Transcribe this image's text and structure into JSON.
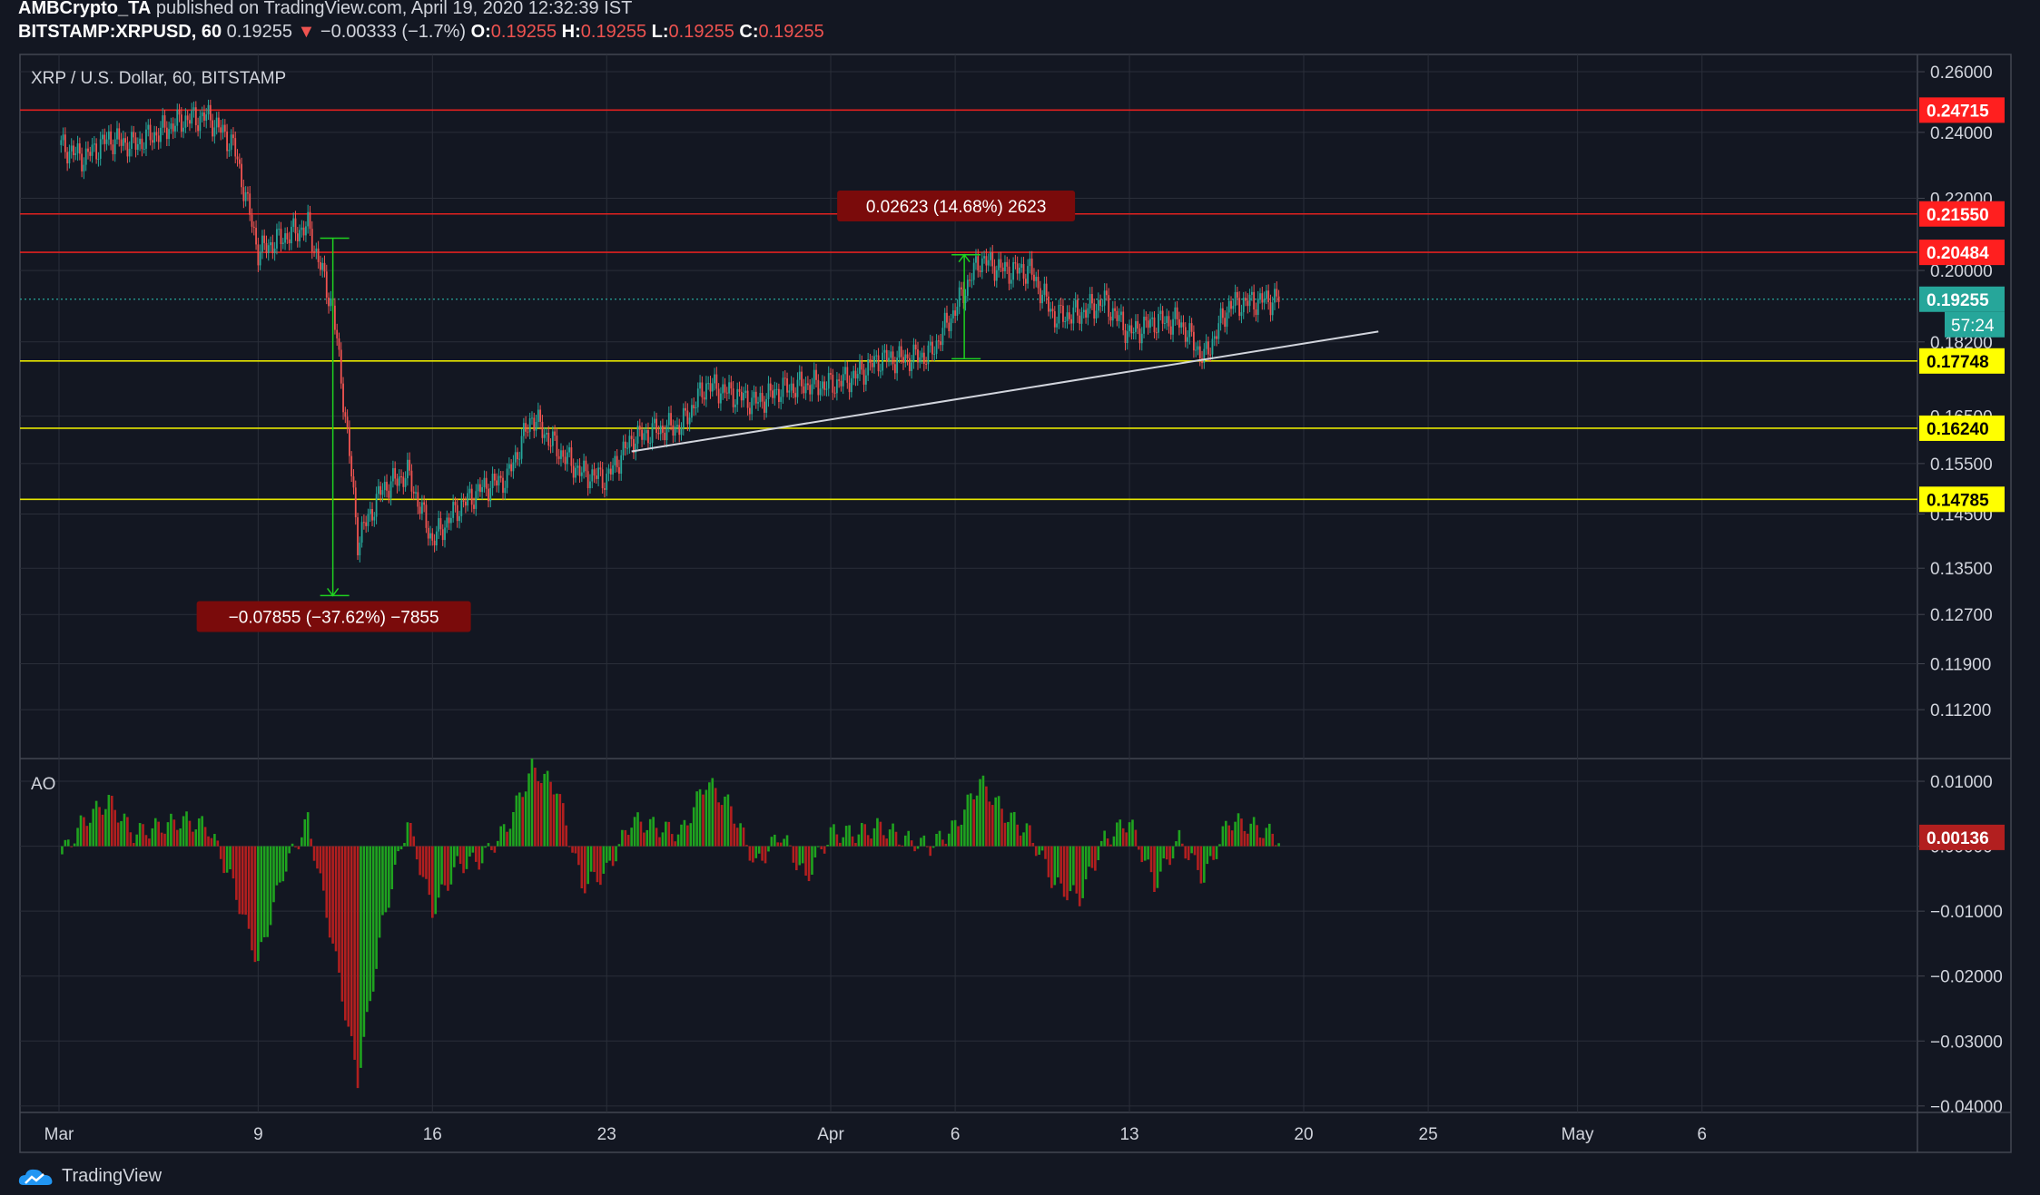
{
  "header": {
    "author": "AMBCrypto_TA",
    "published": "published on TradingView.com, April 19, 2020 12:32:39 IST",
    "symbol": "BITSTAMP:XRPUSD, 60",
    "price": "0.19255",
    "arrow": "▼",
    "change": "−0.00333 (−1.7%)",
    "o_label": "O:",
    "o_val": "0.19255",
    "h_label": "H:",
    "h_val": "0.19255",
    "l_label": "L:",
    "l_val": "0.19255",
    "c_label": "C:",
    "c_val": "0.19255"
  },
  "footer": {
    "brand": "TradingView"
  },
  "colors": {
    "background": "#131722",
    "grid": "#2a2e39",
    "up": "#26a69a",
    "down": "#ef5350",
    "resistance": "#ff1f1f",
    "support": "#ffff00",
    "ao_up": "#26a69a",
    "ao_green": "#1fa31f",
    "ao_red": "#b21f1f",
    "measure_pos": "#1fd11f",
    "measure_label_bg": "#7a0b0b"
  },
  "chart_data": [
    {
      "type": "candlestick",
      "title": "XRP / U.S. Dollar, 60, BITSTAMP",
      "x_ticks": [
        "Mar",
        "9",
        "16",
        "23",
        "Apr",
        "6",
        "13",
        "20",
        "25",
        "May",
        "6"
      ],
      "y_ticks": [
        "0.26000",
        "0.24000",
        "0.22000",
        "0.20000",
        "0.18200",
        "0.16500",
        "0.15500",
        "0.14500",
        "0.13500",
        "0.12700",
        "0.11900",
        "0.11200"
      ],
      "ylim": [
        0.105,
        0.266
      ],
      "log_scale": true,
      "series_close": [
        {
          "date": "2020-03-01",
          "value": 0.236
        },
        {
          "date": "2020-03-02",
          "value": 0.232
        },
        {
          "date": "2020-03-03",
          "value": 0.238
        },
        {
          "date": "2020-03-04",
          "value": 0.236
        },
        {
          "date": "2020-03-05",
          "value": 0.24
        },
        {
          "date": "2020-03-06",
          "value": 0.244
        },
        {
          "date": "2020-03-07",
          "value": 0.245
        },
        {
          "date": "2020-03-08",
          "value": 0.236
        },
        {
          "date": "2020-03-09",
          "value": 0.205
        },
        {
          "date": "2020-03-10",
          "value": 0.209
        },
        {
          "date": "2020-03-11",
          "value": 0.212
        },
        {
          "date": "2020-03-12",
          "value": 0.19
        },
        {
          "date": "2020-03-13",
          "value": 0.14
        },
        {
          "date": "2020-03-14",
          "value": 0.15
        },
        {
          "date": "2020-03-15",
          "value": 0.153
        },
        {
          "date": "2020-03-16",
          "value": 0.14
        },
        {
          "date": "2020-03-17",
          "value": 0.146
        },
        {
          "date": "2020-03-18",
          "value": 0.15
        },
        {
          "date": "2020-03-19",
          "value": 0.152
        },
        {
          "date": "2020-03-20",
          "value": 0.165
        },
        {
          "date": "2020-03-21",
          "value": 0.158
        },
        {
          "date": "2020-03-22",
          "value": 0.153
        },
        {
          "date": "2020-03-23",
          "value": 0.152
        },
        {
          "date": "2020-03-24",
          "value": 0.16
        },
        {
          "date": "2020-03-25",
          "value": 0.162
        },
        {
          "date": "2020-03-26",
          "value": 0.163
        },
        {
          "date": "2020-03-27",
          "value": 0.172
        },
        {
          "date": "2020-03-28",
          "value": 0.17
        },
        {
          "date": "2020-03-29",
          "value": 0.168
        },
        {
          "date": "2020-03-30",
          "value": 0.171
        },
        {
          "date": "2020-03-31",
          "value": 0.172
        },
        {
          "date": "2020-04-01",
          "value": 0.172
        },
        {
          "date": "2020-04-02",
          "value": 0.174
        },
        {
          "date": "2020-04-03",
          "value": 0.178
        },
        {
          "date": "2020-04-04",
          "value": 0.178
        },
        {
          "date": "2020-04-05",
          "value": 0.179
        },
        {
          "date": "2020-04-06",
          "value": 0.19
        },
        {
          "date": "2020-04-07",
          "value": 0.203
        },
        {
          "date": "2020-04-08",
          "value": 0.2
        },
        {
          "date": "2020-04-09",
          "value": 0.2
        },
        {
          "date": "2020-04-10",
          "value": 0.188
        },
        {
          "date": "2020-04-11",
          "value": 0.189
        },
        {
          "date": "2020-04-12",
          "value": 0.192
        },
        {
          "date": "2020-04-13",
          "value": 0.184
        },
        {
          "date": "2020-04-14",
          "value": 0.187
        },
        {
          "date": "2020-04-15",
          "value": 0.187
        },
        {
          "date": "2020-04-16",
          "value": 0.178
        },
        {
          "date": "2020-04-17",
          "value": 0.191
        },
        {
          "date": "2020-04-18",
          "value": 0.192
        },
        {
          "date": "2020-04-19",
          "value": 0.1926
        }
      ],
      "horizontal_levels": [
        {
          "value": 0.24715,
          "label": "0.24715",
          "kind": "resistance"
        },
        {
          "value": 0.2155,
          "label": "0.21550",
          "kind": "resistance"
        },
        {
          "value": 0.20484,
          "label": "0.20484",
          "kind": "resistance"
        },
        {
          "value": 0.17748,
          "label": "0.17748",
          "kind": "support"
        },
        {
          "value": 0.1624,
          "label": "0.16240",
          "kind": "support"
        },
        {
          "value": 0.14785,
          "label": "0.14785",
          "kind": "support"
        }
      ],
      "last_price": {
        "value": 0.19255,
        "label": "0.19255",
        "countdown": "57:24"
      },
      "trendline": {
        "start": {
          "date": "2020-03-24",
          "value": 0.1575
        },
        "end": {
          "date": "2020-04-23",
          "value": 0.1845
        }
      },
      "measurements": [
        {
          "label": "−0.07855 (−37.62%) −7855",
          "date": "2020-03-12",
          "from": 0.2087,
          "to": 0.1302,
          "kind": "negative"
        },
        {
          "label": "0.02623 (14.68%) 2623",
          "date": "2020-04-06",
          "from": 0.178,
          "to": 0.2042,
          "kind": "positive"
        }
      ]
    },
    {
      "type": "bar",
      "title": "AO",
      "y_ticks": [
        "0.01000",
        "0.00000",
        "−0.01000",
        "−0.02000",
        "−0.03000",
        "−0.04000"
      ],
      "ylim": [
        -0.041,
        0.0135
      ],
      "last_value": {
        "value": 0.00136,
        "label": "0.00136"
      },
      "values": [
        {
          "date": "2020-03-01",
          "value": -0.002
        },
        {
          "date": "2020-03-02",
          "value": 0.004
        },
        {
          "date": "2020-03-03",
          "value": 0.007
        },
        {
          "date": "2020-03-04",
          "value": 0.002
        },
        {
          "date": "2020-03-05",
          "value": 0.003
        },
        {
          "date": "2020-03-06",
          "value": 0.004
        },
        {
          "date": "2020-03-07",
          "value": 0.003
        },
        {
          "date": "2020-03-08",
          "value": -0.006
        },
        {
          "date": "2020-03-09",
          "value": -0.018
        },
        {
          "date": "2020-03-10",
          "value": -0.004
        },
        {
          "date": "2020-03-11",
          "value": 0.004
        },
        {
          "date": "2020-03-12",
          "value": -0.015
        },
        {
          "date": "2020-03-13",
          "value": -0.036
        },
        {
          "date": "2020-03-14",
          "value": -0.012
        },
        {
          "date": "2020-03-15",
          "value": 0.004
        },
        {
          "date": "2020-03-16",
          "value": -0.01
        },
        {
          "date": "2020-03-17",
          "value": -0.003
        },
        {
          "date": "2020-03-18",
          "value": -0.002
        },
        {
          "date": "2020-03-19",
          "value": 0.003
        },
        {
          "date": "2020-03-20",
          "value": 0.012
        },
        {
          "date": "2020-03-21",
          "value": 0.009
        },
        {
          "date": "2020-03-22",
          "value": -0.006
        },
        {
          "date": "2020-03-23",
          "value": -0.004
        },
        {
          "date": "2020-03-24",
          "value": 0.004
        },
        {
          "date": "2020-03-25",
          "value": 0.003
        },
        {
          "date": "2020-03-26",
          "value": 0.002
        },
        {
          "date": "2020-03-27",
          "value": 0.01
        },
        {
          "date": "2020-03-28",
          "value": 0.006
        },
        {
          "date": "2020-03-29",
          "value": -0.003
        },
        {
          "date": "2020-03-30",
          "value": 0.002
        },
        {
          "date": "2020-03-31",
          "value": -0.005
        },
        {
          "date": "2020-04-01",
          "value": 0.002
        },
        {
          "date": "2020-04-02",
          "value": 0.002
        },
        {
          "date": "2020-04-03",
          "value": 0.003
        },
        {
          "date": "2020-04-04",
          "value": 0.001
        },
        {
          "date": "2020-04-05",
          "value": 0.0
        },
        {
          "date": "2020-04-06",
          "value": 0.003
        },
        {
          "date": "2020-04-07",
          "value": 0.01
        },
        {
          "date": "2020-04-08",
          "value": 0.005
        },
        {
          "date": "2020-04-09",
          "value": 0.002
        },
        {
          "date": "2020-04-10",
          "value": -0.006
        },
        {
          "date": "2020-04-11",
          "value": -0.008
        },
        {
          "date": "2020-04-12",
          "value": 0.001
        },
        {
          "date": "2020-04-13",
          "value": 0.004
        },
        {
          "date": "2020-04-14",
          "value": -0.006
        },
        {
          "date": "2020-04-15",
          "value": 0.001
        },
        {
          "date": "2020-04-16",
          "value": -0.005
        },
        {
          "date": "2020-04-17",
          "value": 0.004
        },
        {
          "date": "2020-04-18",
          "value": 0.003
        },
        {
          "date": "2020-04-19",
          "value": 0.00136
        }
      ]
    }
  ]
}
